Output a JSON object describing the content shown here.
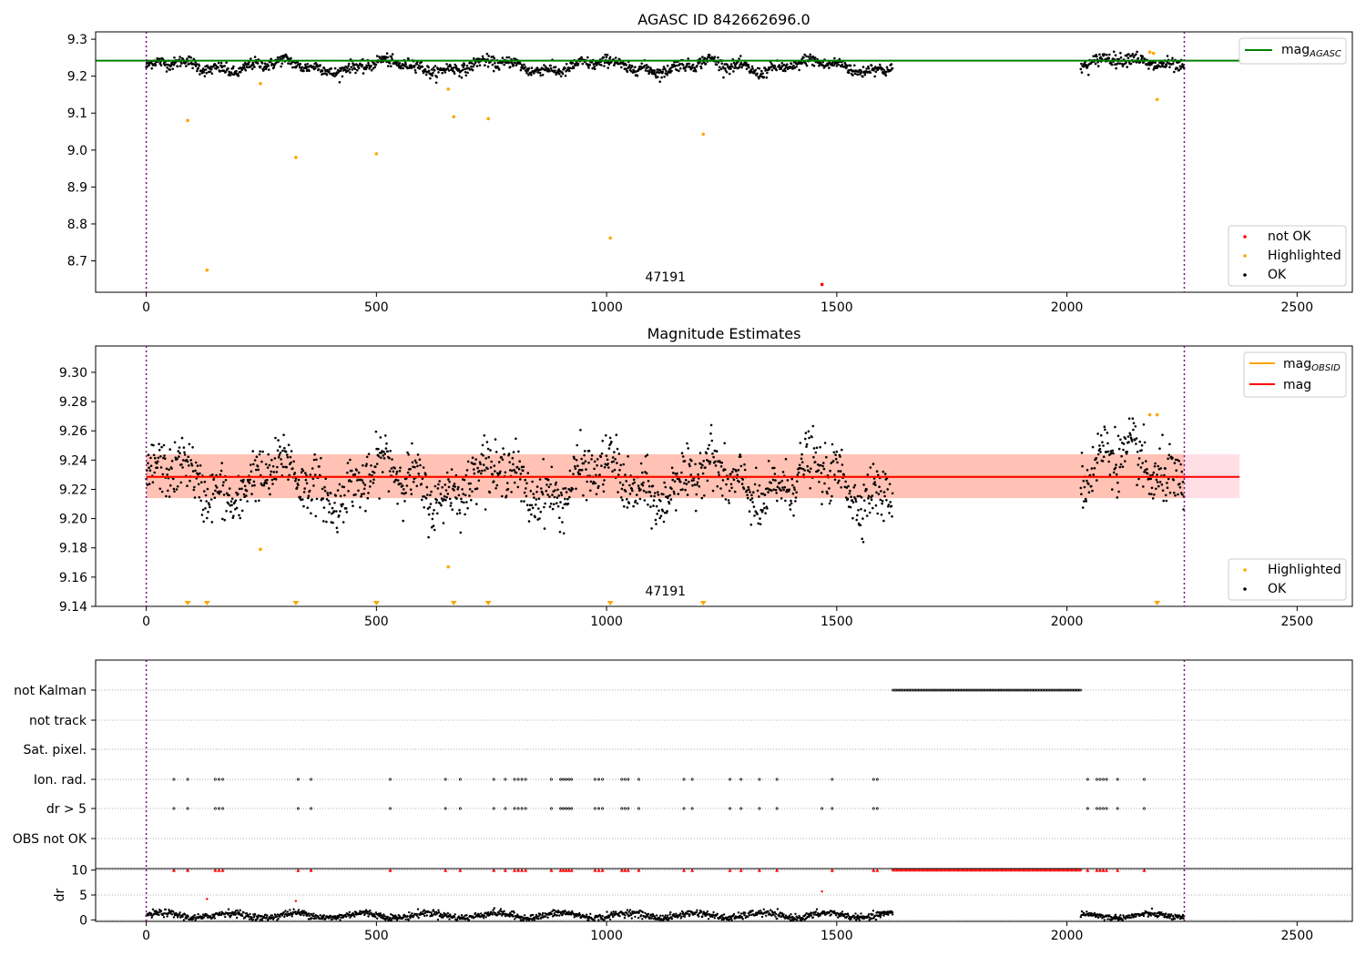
{
  "chart_data": [
    {
      "id": "agasc",
      "type": "scatter",
      "title": "AGASC ID 842662696.0",
      "xlim": [
        -110,
        2620
      ],
      "ylim": [
        8.615,
        9.32
      ],
      "xticks": [
        0,
        500,
        1000,
        1500,
        2000,
        2500
      ],
      "yticks": [
        8.7,
        8.8,
        8.9,
        9.0,
        9.1,
        9.2,
        9.3
      ],
      "ytick_labels": [
        "8.7",
        "8.8",
        "8.9",
        "9.0",
        "9.1",
        "9.2",
        "9.3"
      ],
      "vlines": [
        0,
        2255
      ],
      "vline_color": "#800080",
      "hline": {
        "y": 9.242,
        "x_end": 2375,
        "color": "#008000",
        "label": "mag",
        "label_sub": "AGASC"
      },
      "annotation": {
        "text": "47191",
        "x": 1128,
        "y": 8.64
      },
      "ok_color": "#000000",
      "highlight_color": "#ffa500",
      "notok_color": "#ff0000",
      "ok_segments": [
        {
          "x0": 0,
          "x1": 1622,
          "base": 9.227,
          "amp": 0.018,
          "noise": 0.008
        },
        {
          "x0": 2030,
          "x1": 2255,
          "base": 9.238,
          "amp": 0.016,
          "noise": 0.009
        }
      ],
      "highlighted": [
        {
          "x": 90,
          "y": 9.08
        },
        {
          "x": 132,
          "y": 8.675
        },
        {
          "x": 248,
          "y": 9.18
        },
        {
          "x": 325,
          "y": 8.98
        },
        {
          "x": 500,
          "y": 8.99
        },
        {
          "x": 656,
          "y": 9.165
        },
        {
          "x": 668,
          "y": 9.09
        },
        {
          "x": 743,
          "y": 9.085
        },
        {
          "x": 1008,
          "y": 8.762
        },
        {
          "x": 1210,
          "y": 9.043
        },
        {
          "x": 2180,
          "y": 9.265
        },
        {
          "x": 2188,
          "y": 9.262
        },
        {
          "x": 2196,
          "y": 9.137
        }
      ],
      "not_ok": [
        {
          "x": 1468,
          "y": 8.636
        }
      ],
      "legend_top": [
        {
          "label": "mag",
          "label_sub": "AGASC",
          "kind": "line",
          "color": "#008000"
        }
      ],
      "legend_bottom": [
        {
          "label": "not OK",
          "color": "#ff0000"
        },
        {
          "label": "Highlighted",
          "color": "#ffa500"
        },
        {
          "label": "OK",
          "color": "#000000"
        }
      ]
    },
    {
      "id": "estimates",
      "type": "scatter",
      "title": "Magnitude Estimates",
      "xlim": [
        -110,
        2620
      ],
      "ylim": [
        9.14,
        9.318
      ],
      "xticks": [
        0,
        500,
        1000,
        1500,
        2000,
        2500
      ],
      "yticks": [
        9.14,
        9.16,
        9.18,
        9.2,
        9.22,
        9.24,
        9.26,
        9.28,
        9.3
      ],
      "ytick_labels": [
        "9.14",
        "9.16",
        "9.18",
        "9.20",
        "9.22",
        "9.24",
        "9.26",
        "9.28",
        "9.30"
      ],
      "vlines": [
        0,
        2255
      ],
      "vline_color": "#800080",
      "band": {
        "y0": 9.214,
        "y1": 9.244,
        "x_end": 2375,
        "color": "#ffc0cb",
        "orange_x_end": 2255,
        "orange_color": "#ffa07a"
      },
      "mag_line": {
        "y": 9.2285,
        "x_end": 2375,
        "color": "#ff0000"
      },
      "obsid_line": {
        "y": 9.2285,
        "x_end": 2255,
        "color": "#ffa500"
      },
      "annotation": {
        "text": "47191",
        "x": 1128,
        "y": 9.145
      },
      "ok_segments": [
        {
          "x0": 0,
          "x1": 1622,
          "base": 9.225,
          "amp": 0.017,
          "noise": 0.009
        },
        {
          "x0": 2030,
          "x1": 2255,
          "base": 9.235,
          "amp": 0.016,
          "noise": 0.01
        }
      ],
      "highlighted": [
        {
          "x": 248,
          "y": 9.179
        },
        {
          "x": 656,
          "y": 9.167
        },
        {
          "x": 2180,
          "y": 9.271
        },
        {
          "x": 2196,
          "y": 9.271
        }
      ],
      "bottom_markers_x": [
        90,
        132,
        325,
        500,
        668,
        743,
        1008,
        1210,
        2196
      ],
      "legend_top": [
        {
          "label": "mag",
          "label_sub": "OBSID",
          "kind": "line",
          "color": "#ffa500"
        },
        {
          "label": "mag",
          "kind": "line",
          "color": "#ff0000"
        }
      ],
      "legend_bottom": [
        {
          "label": "Highlighted",
          "color": "#ffa500"
        },
        {
          "label": "OK",
          "color": "#000000"
        }
      ]
    },
    {
      "id": "flags",
      "type": "scatter",
      "xlim": [
        -110,
        2620
      ],
      "categories": [
        "not Kalman",
        "not track",
        "Sat. pixel.",
        "Ion. rad.",
        "dr > 5",
        "OBS not OK"
      ],
      "vlines": [
        0,
        2255
      ],
      "not_kalman_range": [
        1622,
        2030
      ],
      "ion_rad_x": [
        60,
        90,
        150,
        158,
        166,
        330,
        358,
        530,
        650,
        682,
        755,
        780,
        800,
        808,
        816,
        824,
        880,
        900,
        906,
        912,
        918,
        924,
        975,
        983,
        991,
        1033,
        1040,
        1047,
        1070,
        1168,
        1186,
        1268,
        1292,
        1332,
        1370,
        1490,
        1580,
        1588,
        2045,
        2065,
        2072,
        2079,
        2086,
        2110,
        2168
      ],
      "dr5_x": [
        60,
        90,
        150,
        158,
        166,
        330,
        358,
        530,
        650,
        682,
        755,
        780,
        800,
        808,
        816,
        824,
        880,
        900,
        906,
        912,
        918,
        924,
        975,
        983,
        991,
        1033,
        1040,
        1047,
        1070,
        1168,
        1186,
        1268,
        1292,
        1332,
        1370,
        1468,
        1490,
        1580,
        1588,
        2045,
        2065,
        2072,
        2079,
        2086,
        2110,
        2168
      ]
    },
    {
      "id": "dr",
      "type": "scatter",
      "ylabel": "dr",
      "xlim": [
        -110,
        2620
      ],
      "ylim": [
        -0.3,
        10.3
      ],
      "xticks": [
        0,
        500,
        1000,
        1500,
        2000,
        2500
      ],
      "yticks": [
        0,
        5,
        10
      ],
      "ytick_labels": [
        "0",
        "5",
        "10"
      ],
      "vlines": [
        0,
        2255
      ],
      "red_ticks_x": [
        60,
        90,
        150,
        158,
        166,
        330,
        358,
        530,
        650,
        682,
        755,
        780,
        800,
        808,
        816,
        824,
        880,
        900,
        906,
        912,
        918,
        924,
        975,
        983,
        991,
        1033,
        1040,
        1047,
        1070,
        1168,
        1186,
        1268,
        1292,
        1332,
        1370,
        1490,
        1580,
        1588,
        2045,
        2065,
        2072,
        2079,
        2086,
        2110,
        2168
      ],
      "red_dense_range": [
        1622,
        2030
      ],
      "red_points": [
        {
          "x": 132,
          "y": 4.2
        },
        {
          "x": 325,
          "y": 3.8
        },
        {
          "x": 1468,
          "y": 5.7
        }
      ],
      "ok_segments": [
        {
          "x0": 0,
          "x1": 1622,
          "base": 0.9,
          "amp": 0.5,
          "noise": 0.35
        },
        {
          "x0": 2030,
          "x1": 2255,
          "base": 0.8,
          "amp": 0.4,
          "noise": 0.3
        }
      ],
      "flat_segment": {
        "x0": 1590,
        "x1": 1622,
        "y": 1.5
      }
    }
  ]
}
